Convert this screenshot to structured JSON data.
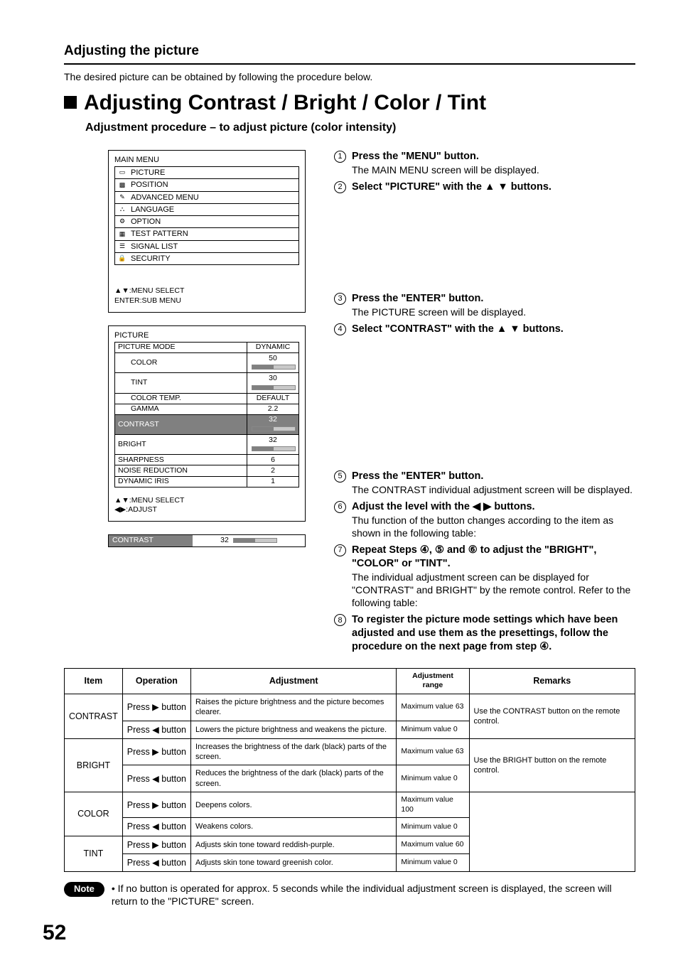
{
  "page": {
    "section_title": "Adjusting the picture",
    "intro": "The desired picture can be obtained by following the procedure below.",
    "main_heading": "Adjusting Contrast / Bright / Color / Tint",
    "sub_heading": "Adjustment procedure – to adjust picture (color intensity)",
    "page_number": "52"
  },
  "main_menu": {
    "title": "MAIN MENU",
    "items": [
      "PICTURE",
      "POSITION",
      "ADVANCED MENU",
      "LANGUAGE",
      "OPTION",
      "TEST PATTERN",
      "SIGNAL LIST",
      "SECURITY"
    ],
    "hint1": "▲▼:MENU SELECT",
    "hint2": "ENTER:SUB MENU"
  },
  "picture_menu": {
    "title": "PICTURE",
    "rows": [
      {
        "label": "PICTURE MODE",
        "value": "DYNAMIC",
        "slider": false,
        "indent": false
      },
      {
        "label": "COLOR",
        "value": "50",
        "slider": true,
        "fill": 50,
        "indent": true
      },
      {
        "label": "TINT",
        "value": "30",
        "slider": true,
        "fill": 50,
        "indent": true
      },
      {
        "label": "COLOR TEMP.",
        "value": "DEFAULT",
        "slider": false,
        "indent": true
      },
      {
        "label": "GAMMA",
        "value": "2.2",
        "slider": false,
        "indent": true
      },
      {
        "label": "CONTRAST",
        "value": "32",
        "slider": true,
        "fill": 50,
        "indent": false,
        "hl": true
      },
      {
        "label": "BRIGHT",
        "value": "32",
        "slider": true,
        "fill": 50,
        "indent": false
      },
      {
        "label": "SHARPNESS",
        "value": "6",
        "slider": false,
        "indent": false
      },
      {
        "label": "NOISE REDUCTION",
        "value": "2",
        "slider": false,
        "indent": false
      },
      {
        "label": "DYNAMIC IRIS",
        "value": "1",
        "slider": false,
        "indent": false
      }
    ],
    "hint1": "▲▼:MENU SELECT",
    "hint2": "◀▶:ADJUST"
  },
  "contrast_bar": {
    "label": "CONTRAST",
    "value": "32"
  },
  "steps": [
    {
      "n": "1",
      "lead": "Press the \"MENU\" button.",
      "desc": "The MAIN MENU screen will be displayed."
    },
    {
      "n": "2",
      "lead": "Select \"PICTURE\" with the  ▲  ▼ buttons.",
      "desc": ""
    },
    {
      "n": "3",
      "lead": "Press the \"ENTER\" button.",
      "desc": "The PICTURE screen will be displayed."
    },
    {
      "n": "4",
      "lead": "Select \"CONTRAST\" with the ▲  ▼  buttons.",
      "desc": ""
    },
    {
      "n": "5",
      "lead": "Press the \"ENTER\" button.",
      "desc": "The CONTRAST individual adjustment screen will be displayed."
    },
    {
      "n": "6",
      "lead": "Adjust the level with the  ◀  ▶  buttons.",
      "desc": "Thu function of the button changes according to the item as shown in the following table:"
    },
    {
      "n": "7",
      "lead": "Repeat Steps ④, ⑤ and ⑥ to adjust the \"BRIGHT\", \"COLOR\" or \"TINT\".",
      "desc": "The individual adjustment screen can be displayed for \"CONTRAST\" and BRIGHT\" by the remote control.  Refer to the following table:"
    },
    {
      "n": "8",
      "lead": "To register the picture mode settings which have been adjusted and use them as the presettings, follow the procedure on the next page from step ④.",
      "desc": ""
    }
  ],
  "adj_table": {
    "head": {
      "item": "Item",
      "operation": "Operation",
      "adjustment": "Adjustment",
      "range": "Adjustment range",
      "remarks": "Remarks"
    },
    "rows": [
      {
        "item": "CONTRAST",
        "op1": "Press ▶ button",
        "adj1": "Raises the picture brightness and the picture becomes clearer.",
        "rng1": "Maximum value 63",
        "op2": "Press ◀ button",
        "adj2": "Lowers the picture brightness and weakens the picture.",
        "rng2": "Minimum value 0",
        "remarks": "Use the CONTRAST button on the remote control."
      },
      {
        "item": "BRIGHT",
        "op1": "Press ▶ button",
        "adj1": "Increases the brightness of the dark (black) parts of the screen.",
        "rng1": "Maximum value 63",
        "op2": "Press ◀ button",
        "adj2": "Reduces the brightness of the dark (black) parts of the screen.",
        "rng2": "Minimum value 0",
        "remarks": "Use the BRIGHT button on the remote control."
      },
      {
        "item": "COLOR",
        "op1": "Press ▶ button",
        "adj1": "Deepens colors.",
        "rng1": "Maximum value 100",
        "op2": "Press ◀ button",
        "adj2": "Weakens colors.",
        "rng2": "Minimum value 0",
        "remarks": ""
      },
      {
        "item": "TINT",
        "op1": "Press ▶ button",
        "adj1": "Adjusts skin tone toward reddish-purple.",
        "rng1": "Maximum value 60",
        "op2": "Press ◀ button",
        "adj2": "Adjusts skin tone toward greenish color.",
        "rng2": "Minimum value 0",
        "remarks": ""
      }
    ]
  },
  "note": {
    "label": "Note",
    "text": "• If no button is operated for approx. 5 seconds while the individual adjustment screen is displayed, the screen will return to the \"PICTURE\" screen."
  }
}
